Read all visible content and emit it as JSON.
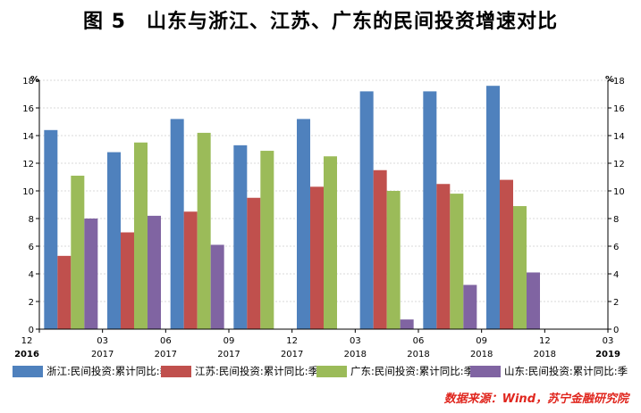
{
  "title": "图 5　山东与浙江、江苏、广东的民间投资增速对比",
  "source": "数据来源：Wind，苏宁金融研究院",
  "chart_data": {
    "type": "bar",
    "unit_left": "%",
    "unit_right": "%",
    "ylim": [
      0,
      18
    ],
    "yticks": [
      "0",
      "2",
      "4",
      "6",
      "8",
      "10",
      "12",
      "14",
      "16",
      "18"
    ],
    "grid": true,
    "legend_position": "bottom",
    "x_ticks": [
      {
        "month": "12",
        "year": "2016"
      },
      {
        "month": "03",
        "year": "2017"
      },
      {
        "month": "06",
        "year": "2017"
      },
      {
        "month": "09",
        "year": "2017"
      },
      {
        "month": "12",
        "year": "2017"
      },
      {
        "month": "03",
        "year": "2018"
      },
      {
        "month": "06",
        "year": "2018"
      },
      {
        "month": "09",
        "year": "2018"
      },
      {
        "month": "12",
        "year": "2018"
      },
      {
        "month": "03",
        "year": "2019"
      }
    ],
    "categories": [
      "2017-03",
      "2017-06",
      "2017-09",
      "2017-12",
      "2018-03",
      "2018-06",
      "2018-09",
      "2018-12"
    ],
    "series": [
      {
        "name": "浙江:民间投资:累计同比:季",
        "color": "#4f81bd",
        "values": [
          14.4,
          12.8,
          15.2,
          13.3,
          15.2,
          17.2,
          17.2,
          17.6
        ]
      },
      {
        "name": "江苏:民间投资:累计同比:季",
        "color": "#c0504d",
        "values": [
          5.3,
          7.0,
          8.5,
          9.5,
          10.3,
          11.5,
          10.5,
          10.8
        ]
      },
      {
        "name": "广东:民间投资:累计同比:季",
        "color": "#9bbb59",
        "values": [
          11.1,
          13.5,
          14.2,
          12.9,
          12.5,
          10.0,
          9.8,
          8.9
        ]
      },
      {
        "name": "山东:民间投资:累计同比:季",
        "color": "#8064a2",
        "values": [
          8.0,
          8.2,
          6.1,
          null,
          null,
          0.7,
          3.2,
          4.1
        ]
      }
    ]
  }
}
